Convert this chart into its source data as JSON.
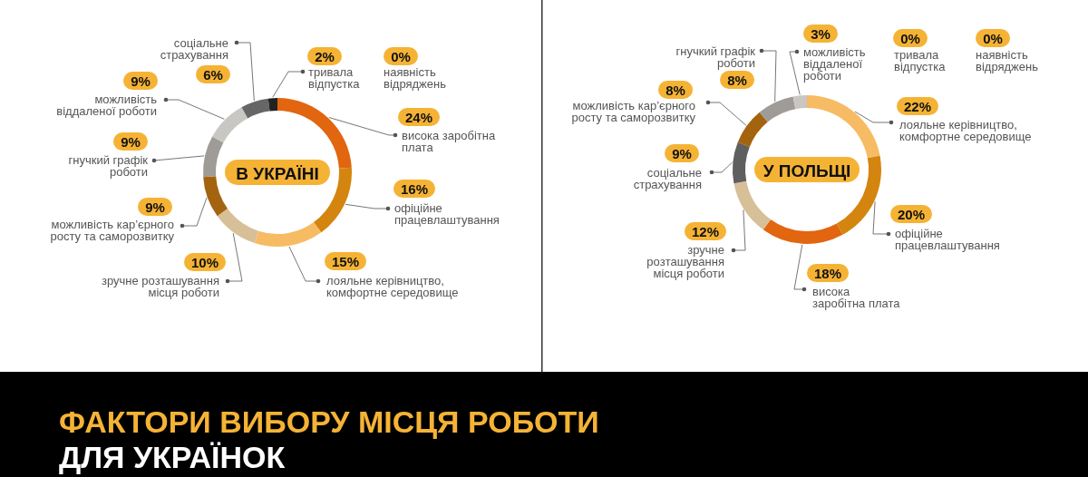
{
  "chart_data": [
    {
      "type": "donut",
      "title": "В УКРАЇНІ",
      "categories": [
        "висока заробітна плата",
        "офіційне працевлаштування",
        "лояльне керівництво, комфортне середовище",
        "зручне розташування місця роботи",
        "можливість кар’єрного росту та саморозвитку",
        "гнучкий графік роботи",
        "можливість віддаленої роботи",
        "соціальне страхування",
        "тривала відпустка",
        "наявність відряджень"
      ],
      "values": [
        24,
        16,
        15,
        10,
        9,
        9,
        9,
        6,
        2,
        0
      ],
      "colors": [
        "#e2650f",
        "#d4850f",
        "#f6bb63",
        "#d7bf98",
        "#a4630e",
        "#9f9c97",
        "#c9c7c3",
        "#666666",
        "#222222",
        null
      ],
      "value_labels": [
        "24%",
        "16%",
        "15%",
        "10%",
        "9%",
        "9%",
        "9%",
        "6%",
        "2%",
        "0%"
      ]
    },
    {
      "type": "donut",
      "title": "У ПОЛЬЩІ",
      "categories": [
        "лояльне керівництво, комфортне середовище",
        "офіційне працевлаштування",
        "висока заробітна плата",
        "зручне розташування місця роботи",
        "соціальне страхування",
        "можливість кар’єрного росту та саморозвитку",
        "гнучкий графік роботи",
        "можливість віддаленої роботи",
        "тривала відпустка",
        "наявність відряджень"
      ],
      "values": [
        22,
        20,
        18,
        12,
        9,
        8,
        8,
        3,
        0,
        0
      ],
      "colors": [
        "#f6bb63",
        "#d4850f",
        "#e2650f",
        "#d7bf98",
        "#5f5f5f",
        "#a4630e",
        "#9f9c97",
        "#c9c7c3",
        null,
        null
      ],
      "value_labels": [
        "22%",
        "20%",
        "18%",
        "12%",
        "9%",
        "8%",
        "8%",
        "3%",
        "0%",
        "0%"
      ]
    },
    {
      "type": "other",
      "title": "ФАКТОРИ ВИБОРУ МІСЦЯ РОБОТИ",
      "subtitle": "ДЛЯ УКРАЇНОК"
    }
  ]
}
